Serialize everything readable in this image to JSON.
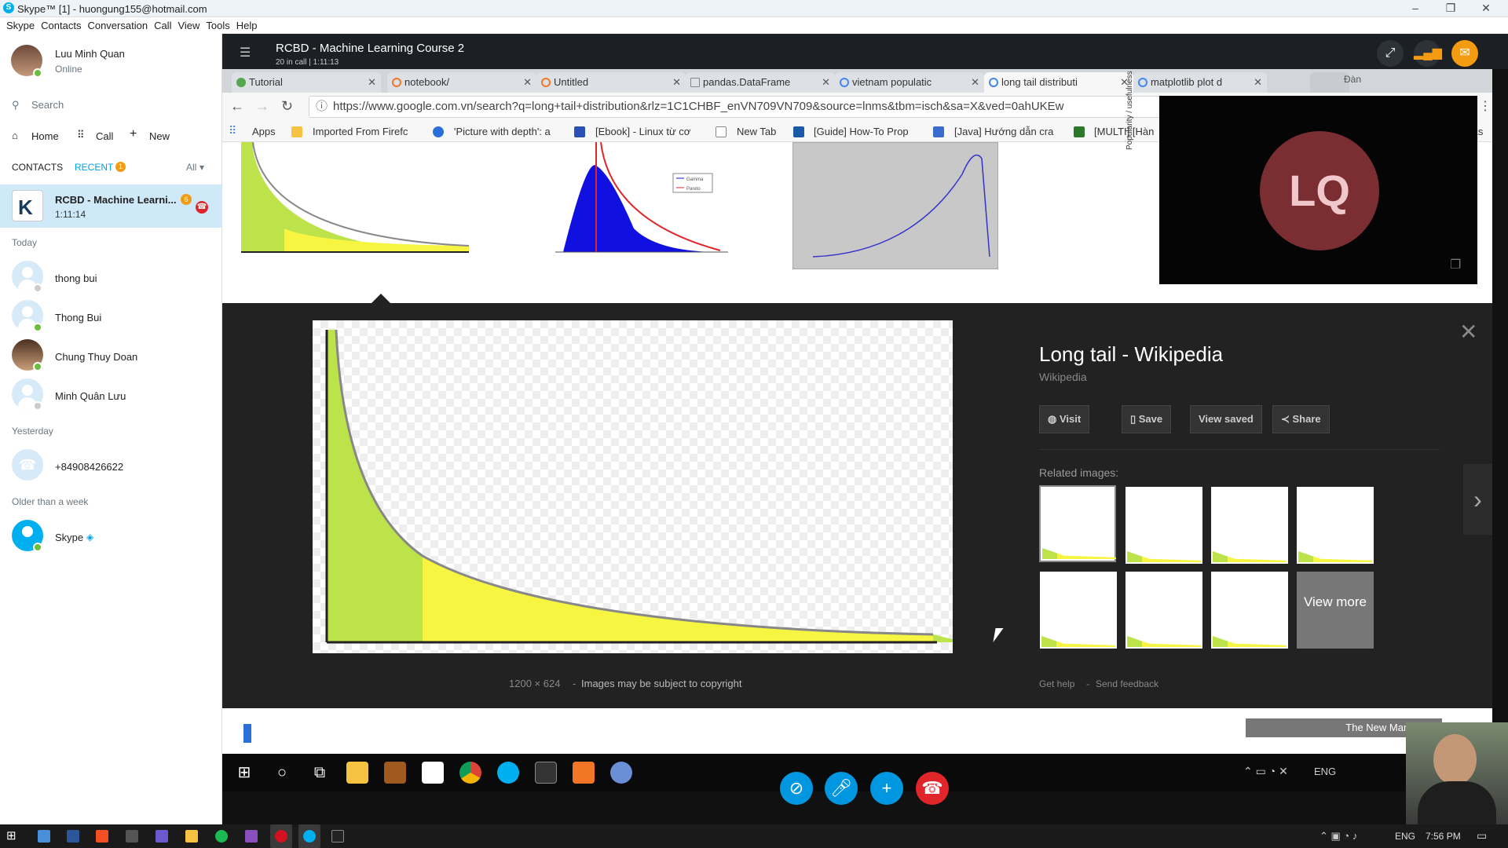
{
  "window": {
    "title": "Skype™ [1] - huongung155@hotmail.com",
    "menu": [
      "Skype",
      "Contacts",
      "Conversation",
      "Call",
      "View",
      "Tools",
      "Help"
    ]
  },
  "sidebar": {
    "profile": {
      "name": "Luu Minh Quan",
      "status": "Online"
    },
    "search_placeholder": "Search",
    "nav": {
      "home": "Home",
      "call": "Call",
      "new": "New"
    },
    "tabs": {
      "contacts": "CONTACTS",
      "recent": "RECENT",
      "recent_badge": "1",
      "filter": "All"
    },
    "active": {
      "name": "RCBD - Machine Learni...",
      "duration": "1:11:14",
      "badge": "6"
    },
    "sections": {
      "today": "Today",
      "yesterday": "Yesterday",
      "older": "Older than a week"
    },
    "today_contacts": [
      {
        "name": "thong bui"
      },
      {
        "name": "Thong Bui"
      },
      {
        "name": "Chung Thuy Doan"
      },
      {
        "name": "Minh  Quân Lưu"
      }
    ],
    "yesterday_contacts": [
      {
        "name": "+84908426622"
      }
    ],
    "older_contacts": [
      {
        "name": "Skype"
      }
    ]
  },
  "conversation": {
    "title": "RCBD - Machine Learning Course 2",
    "subtitle": "20 in call | 1:11:13",
    "video_initials": "LQ"
  },
  "browser": {
    "tabs": [
      {
        "label": "Tutorial"
      },
      {
        "label": "notebook/"
      },
      {
        "label": "Untitled"
      },
      {
        "label": "pandas.DataFrame"
      },
      {
        "label": "vietnam populatic"
      },
      {
        "label": "long tail distributi"
      },
      {
        "label": "matplotlib plot d"
      }
    ],
    "url": "https://www.google.com.vn/search?q=long+tail+distribution&rlz=1C1CHBF_enVN709VN709&source=lnms&tbm=isch&sa=X&ved=0ahUKEw",
    "bookmarks": [
      "Apps",
      "Imported From Firefc",
      "'Picture with depth': a",
      "[Ebook] - Linux từ cơ",
      "New Tab",
      "[Guide] How-To Prop",
      "[Java] Hướng dẫn cra",
      "[MULTI] [Hàn"
    ],
    "bookmarks_overflow": "rks",
    "profile_label": "Đàn"
  },
  "image_panel": {
    "title": "Long tail - Wikipedia",
    "source": "Wikipedia",
    "buttons": {
      "visit": "Visit",
      "save": "Save",
      "view_saved": "View saved",
      "share": "Share"
    },
    "related_label": "Related images:",
    "view_more": "View more",
    "dimensions": "1200 × 624",
    "copyright": "Images may be subject to copyright",
    "help": "Get help",
    "feedback": "Send feedback",
    "thumb_ylabel": "Popularity / usefulness",
    "thumb_legend": [
      "Gamma",
      "Pareto"
    ]
  },
  "remote_taskbar": {
    "lang": "ENG",
    "ad_text": "The New Marketpla"
  },
  "os_taskbar": {
    "lang": "ENG",
    "time": "7:56 PM"
  }
}
